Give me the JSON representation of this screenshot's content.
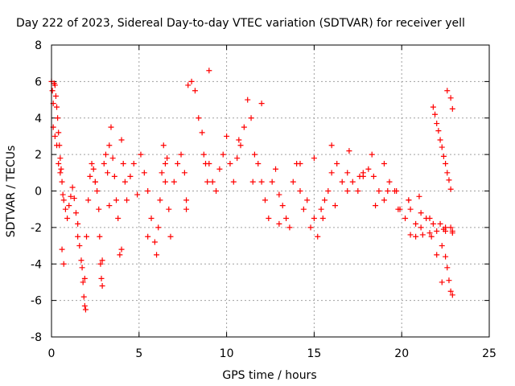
{
  "chart_data": {
    "type": "scatter",
    "title": "Day 222 of 2023, Sidereal Day-to-day VTEC variation (SDTVAR) for receiver yell",
    "xlabel": "GPS time / hours",
    "ylabel": "SDTVAR / TECUs",
    "xlim": [
      0,
      25
    ],
    "ylim": [
      -8,
      8
    ],
    "xticks": [
      0,
      5,
      10,
      15,
      20,
      25
    ],
    "yticks": [
      -8,
      -6,
      -4,
      -2,
      0,
      2,
      4,
      6,
      8
    ],
    "grid": true,
    "marker": "+",
    "series": [
      {
        "name": "SDTVAR",
        "color": "#ff0000",
        "x": [
          0.0,
          0.05,
          0.1,
          0.15,
          0.2,
          0.25,
          0.3,
          0.35,
          0.4,
          0.45,
          0.5,
          0.55,
          0.6,
          0.65,
          0.7,
          0.8,
          0.9,
          1.0,
          1.1,
          1.2,
          1.3,
          1.4,
          1.5,
          1.6,
          1.7,
          1.75,
          1.8,
          1.85,
          1.9,
          1.95,
          2.0,
          2.1,
          2.2,
          2.3,
          2.4,
          2.5,
          2.6,
          2.7,
          2.75,
          2.8,
          2.85,
          2.9,
          3.0,
          3.1,
          3.2,
          3.3,
          3.4,
          3.5,
          3.6,
          3.7,
          3.8,
          3.9,
          4.0,
          4.1,
          4.2,
          4.3,
          4.5,
          4.7,
          4.9,
          5.1,
          5.3,
          5.5,
          5.7,
          5.9,
          6.0,
          6.1,
          6.2,
          6.3,
          6.4,
          6.5,
          6.6,
          6.7,
          6.8,
          7.0,
          7.2,
          7.4,
          7.6,
          7.7,
          7.8,
          8.0,
          8.2,
          8.4,
          8.6,
          8.7,
          8.8,
          8.9,
          9.0,
          9.2,
          9.4,
          9.6,
          9.8,
          10.0,
          10.2,
          10.4,
          10.6,
          10.8,
          11.0,
          11.2,
          11.4,
          11.6,
          11.8,
          12.0,
          12.2,
          12.4,
          12.6,
          12.8,
          13.0,
          13.2,
          13.4,
          13.6,
          13.8,
          14.0,
          14.2,
          14.4,
          14.6,
          14.8,
          15.0,
          15.2,
          15.4,
          15.6,
          15.8,
          16.0,
          16.3,
          16.6,
          16.9,
          17.2,
          17.5,
          17.8,
          18.1,
          18.4,
          18.7,
          19.0,
          19.3,
          19.6,
          19.9,
          20.2,
          20.5,
          20.8,
          21.1,
          21.4,
          21.7,
          22.0,
          22.3,
          22.6,
          22.9,
          0.1,
          0.2,
          0.3,
          0.4,
          0.5,
          0.6,
          0.7,
          1.5,
          1.9,
          2.5,
          2.9,
          3.3,
          4.0,
          5.5,
          6.5,
          7.7,
          9.0,
          10.7,
          11.5,
          12.0,
          13.0,
          14.2,
          15.0,
          16.0,
          17.0,
          17.8,
          18.5,
          19.2,
          19.8,
          20.4,
          21.0,
          21.6,
          22.2,
          22.5,
          22.8,
          21.8,
          21.9,
          22.0,
          22.1,
          22.2,
          22.3,
          22.4,
          22.5,
          22.6,
          22.7,
          22.8,
          22.9,
          15.5,
          16.2,
          16.9,
          17.6,
          18.3,
          19.0,
          19.7,
          20.4,
          21.1,
          21.8,
          22.5,
          22.9,
          20.5,
          20.8,
          21.2,
          21.6,
          22.0,
          22.4,
          22.8,
          22.3,
          22.5,
          22.6,
          22.7,
          22.8,
          22.9
        ],
        "y": [
          6.0,
          5.5,
          4.8,
          5.9,
          5.8,
          5.2,
          4.6,
          4.0,
          3.2,
          2.5,
          1.8,
          1.2,
          0.5,
          -0.2,
          -0.5,
          -1.0,
          -1.5,
          -0.8,
          -0.3,
          0.2,
          -0.4,
          -1.2,
          -2.5,
          -3.0,
          -3.8,
          -4.2,
          -5.0,
          -5.8,
          -6.3,
          -6.5,
          -2.5,
          -0.5,
          0.8,
          1.5,
          1.2,
          0.5,
          0.0,
          -1.0,
          -2.5,
          -4.0,
          -4.8,
          -5.2,
          1.5,
          2.0,
          1.0,
          2.5,
          3.5,
          1.8,
          0.8,
          -0.5,
          -1.5,
          -3.5,
          2.8,
          1.5,
          0.5,
          -0.5,
          0.8,
          1.5,
          -0.2,
          2.0,
          1.0,
          0.0,
          -1.5,
          -2.8,
          -3.5,
          -2.0,
          -0.5,
          1.0,
          2.5,
          0.5,
          1.8,
          -1.0,
          -2.5,
          0.5,
          1.5,
          2.0,
          1.0,
          -0.5,
          5.8,
          6.0,
          5.5,
          4.0,
          3.2,
          2.0,
          1.5,
          0.5,
          6.6,
          0.5,
          0.0,
          1.2,
          2.0,
          3.0,
          1.5,
          0.5,
          1.8,
          2.5,
          3.5,
          5.0,
          4.0,
          2.0,
          1.5,
          0.5,
          -0.5,
          -1.5,
          0.5,
          1.2,
          -0.2,
          -0.8,
          -1.5,
          -2.0,
          0.5,
          1.5,
          0.0,
          -1.0,
          -0.5,
          -2.0,
          -1.5,
          -2.5,
          -1.0,
          -0.5,
          0.0,
          1.0,
          1.5,
          0.5,
          1.0,
          0.5,
          0.0,
          0.8,
          1.2,
          0.8,
          0.0,
          -0.5,
          0.5,
          0.0,
          -1.0,
          -1.5,
          -1.0,
          -1.8,
          -2.0,
          -1.5,
          -2.5,
          -3.5,
          -5.0,
          5.5,
          4.5,
          3.5,
          3.0,
          2.5,
          1.5,
          1.0,
          -3.2,
          -4.0,
          -1.8,
          -4.8,
          0.5,
          -3.8,
          -0.8,
          -3.2,
          -2.5,
          1.5,
          -1.0,
          1.5,
          2.8,
          0.5,
          4.8,
          -1.8,
          1.5,
          1.8,
          2.5,
          2.2,
          1.0,
          -0.8,
          0.0,
          -1.0,
          -0.5,
          -0.3,
          -1.5,
          -1.8,
          -2.0,
          5.1,
          4.6,
          4.2,
          3.7,
          3.3,
          2.8,
          2.4,
          1.9,
          1.5,
          1.0,
          0.6,
          0.1,
          -2.2,
          -1.5,
          -0.8,
          0.0,
          0.8,
          2.0,
          1.5,
          0.0,
          -0.5,
          -1.2,
          -1.8,
          -2.2,
          -2.3,
          -2.4,
          -2.5,
          -2.4,
          -2.3,
          -2.2,
          -2.1,
          -2.0,
          -3.0,
          -3.6,
          -4.2,
          -4.9,
          -5.5,
          -5.7
        ]
      }
    ]
  }
}
